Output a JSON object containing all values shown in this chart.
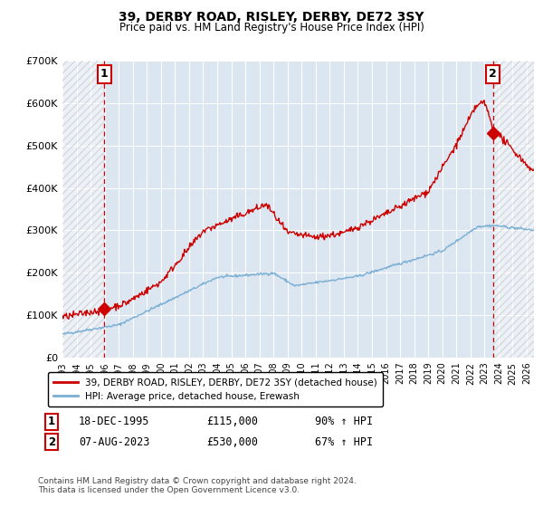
{
  "title": "39, DERBY ROAD, RISLEY, DERBY, DE72 3SY",
  "subtitle": "Price paid vs. HM Land Registry's House Price Index (HPI)",
  "ylim": [
    0,
    700000
  ],
  "yticks": [
    0,
    100000,
    200000,
    300000,
    400000,
    500000,
    600000,
    700000
  ],
  "ytick_labels": [
    "£0",
    "£100K",
    "£200K",
    "£300K",
    "£400K",
    "£500K",
    "£600K",
    "£700K"
  ],
  "xlim_start": 1993.0,
  "xlim_end": 2026.5,
  "hatch_left_end": 1995.9,
  "hatch_right_start": 2023.6,
  "purchase1_x": 1995.97,
  "purchase1_y": 115000,
  "purchase2_x": 2023.59,
  "purchase2_y": 530000,
  "vline_color": "#cc0000",
  "marker_color": "#cc0000",
  "red_line_color": "#cc0000",
  "blue_line_color": "#7bafd4",
  "bg_color": "#dce6f1",
  "grid_color": "#ffffff",
  "legend_line1": "39, DERBY ROAD, RISLEY, DERBY, DE72 3SY (detached house)",
  "legend_line2": "HPI: Average price, detached house, Erewash",
  "table_row1": [
    "1",
    "18-DEC-1995",
    "£115,000",
    "90% ↑ HPI"
  ],
  "table_row2": [
    "2",
    "07-AUG-2023",
    "£530,000",
    "67% ↑ HPI"
  ],
  "footer": "Contains HM Land Registry data © Crown copyright and database right 2024.\nThis data is licensed under the Open Government Licence v3.0.",
  "xtick_years": [
    1993,
    1994,
    1995,
    1996,
    1997,
    1998,
    1999,
    2000,
    2001,
    2002,
    2003,
    2004,
    2005,
    2006,
    2007,
    2008,
    2009,
    2010,
    2011,
    2012,
    2013,
    2014,
    2015,
    2016,
    2017,
    2018,
    2019,
    2020,
    2021,
    2022,
    2023,
    2024,
    2025,
    2026
  ]
}
